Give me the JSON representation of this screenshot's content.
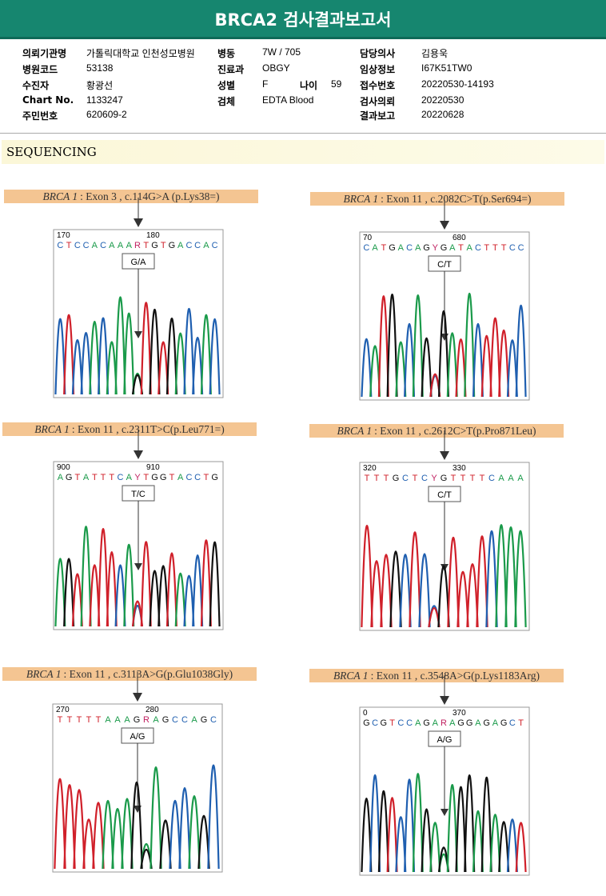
{
  "title": "BRCA2 검사결과보고서",
  "info": [
    {
      "k": "의뢰기관명",
      "v": "가톨릭대학교 인천성모병원"
    },
    {
      "k": "병원코드",
      "v": "53138"
    },
    {
      "k": "수진자",
      "v": "황광선"
    },
    {
      "k": "Chart No.",
      "v": "1133247"
    },
    {
      "k": "주민번호",
      "v": "620609-2"
    },
    {
      "k": "병동",
      "v": "7W / 705"
    },
    {
      "k": "진료과",
      "v": "OBGY"
    },
    {
      "k": "성별",
      "v": "F"
    },
    {
      "k": "검체",
      "v": "EDTA Blood"
    },
    {
      "k": "나이",
      "v": "59"
    },
    {
      "k": "담당의사",
      "v": "김용욱"
    },
    {
      "k": "임상정보",
      "v": "I67K51TW0"
    },
    {
      "k": "접수번호",
      "v": "20220530-14193"
    },
    {
      "k": "검사의뢰",
      "v": "20220530"
    },
    {
      "k": "결과보고",
      "v": "20220628"
    }
  ],
  "section": "SEQUENCING",
  "variants": [
    {
      "gene": "BRCA 1",
      "desc": ": Exon 3 , c.114G>A (p.Lys38=)",
      "n1": "170",
      "n2": "180",
      "seq": "CTCCACAAARTGTGACCAC",
      "call": "G/A"
    },
    {
      "gene": "BRCA 1",
      "desc": ": Exon 11 , c.2082C>T(p.Ser694=)",
      "n1": "70",
      "n2": "680",
      "seq": "CATGACAGYGATACTTTCC",
      "call": "C/T"
    },
    {
      "gene": "BRCA 1",
      "desc": ": Exon 11 , c.2311T>C(p.Leu771=)",
      "n1": "900",
      "n2": "910",
      "seq": "AGTATTTCAYTGGTACCTG",
      "call": "T/C"
    },
    {
      "gene": "BRCA 1",
      "desc": ": Exon 11 , c.2612C>T(p.Pro871Leu)",
      "n1": "320",
      "n2": "330",
      "seq": "TTTGCTCYGTTTTCAAA",
      "call": "C/T"
    },
    {
      "gene": "BRCA 1",
      "desc": ": Exon 11 , c.3113A>G(p.Glu1038Gly)",
      "n1": "270",
      "n2": "280",
      "seq": "TTTTTAAAGRAGCCAGC",
      "call": "A/G"
    },
    {
      "gene": "BRCA 1",
      "desc": ": Exon 11 , c.3548A>G(p.Lys1183Arg)",
      "n1": "0",
      "n2": "370",
      "seq": "GCGTCCAGARAGGAGAGCT",
      "call": "A/G"
    }
  ],
  "colors": {
    "A": "#1a9a4a",
    "C": "#1f5fb0",
    "G": "#111111",
    "T": "#d0202a"
  }
}
